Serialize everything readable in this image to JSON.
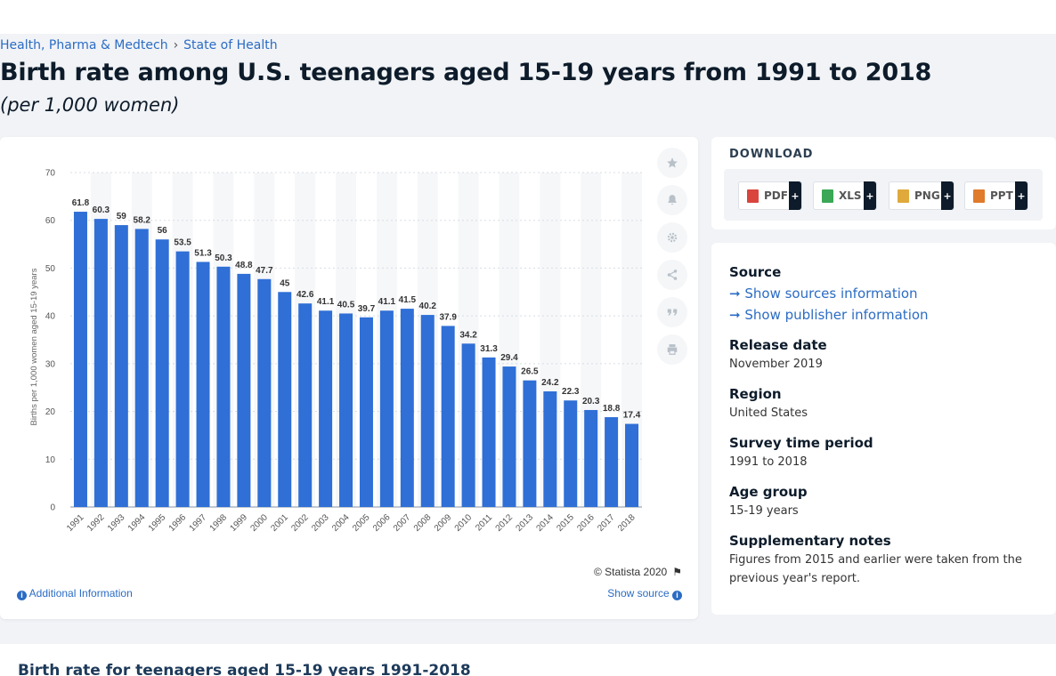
{
  "breadcrumb": {
    "category": "Health, Pharma & Medtech",
    "separator": "›",
    "topic": "State of Health"
  },
  "page": {
    "title": "Birth rate among U.S. teenagers aged 15-19 years from 1991 to 2018",
    "subtitle": "(per 1,000 women)"
  },
  "chart_data": {
    "type": "bar",
    "title": "",
    "xlabel": "",
    "ylabel": "Births per 1,000 women aged 15-19 years",
    "categories": [
      "1991",
      "1992",
      "1993",
      "1994",
      "1995",
      "1996",
      "1997",
      "1998",
      "1999",
      "2000",
      "2001",
      "2002",
      "2003",
      "2004",
      "2005",
      "2006",
      "2007",
      "2008",
      "2009",
      "2010",
      "2011",
      "2012",
      "2013",
      "2014",
      "2015",
      "2016",
      "2017",
      "2018"
    ],
    "values": [
      61.8,
      60.3,
      59,
      58.2,
      56,
      53.5,
      51.3,
      50.3,
      48.8,
      47.7,
      45,
      42.6,
      41.1,
      40.5,
      39.7,
      41.1,
      41.5,
      40.2,
      37.9,
      34.2,
      31.3,
      29.4,
      26.5,
      24.2,
      22.3,
      20.3,
      18.8,
      17.4
    ],
    "value_labels": [
      "61.8",
      "60.3",
      "59",
      "58.2",
      "56",
      "53.5",
      "51.3",
      "50.3",
      "48.8",
      "47.7",
      "45",
      "42.6",
      "41.1",
      "40.5",
      "39.7",
      "41.1",
      "41.5",
      "40.2",
      "37.9",
      "34.2",
      "31.3",
      "29.4",
      "26.5",
      "24.2",
      "22.3",
      "20.3",
      "18.8",
      "17.4"
    ],
    "ylim": [
      0,
      70
    ],
    "yticks": [
      "0",
      "10",
      "20",
      "30",
      "40",
      "50",
      "60",
      "70"
    ],
    "grid": "alternating column bands",
    "bar_color": "#2f6fd6"
  },
  "chart_footer": {
    "copyright": "© Statista 2020",
    "additional_info": "Additional Information",
    "show_source": "Show source"
  },
  "download": {
    "title": "DOWNLOAD",
    "formats": [
      {
        "label": "PDF",
        "plus": "+",
        "color": "#d9443c"
      },
      {
        "label": "XLS",
        "plus": "+",
        "color": "#3aa856"
      },
      {
        "label": "PNG",
        "plus": "+",
        "color": "#e0a93b"
      },
      {
        "label": "PPT",
        "plus": "+",
        "color": "#e07b2b"
      }
    ]
  },
  "meta": {
    "source_label": "Source",
    "show_sources": "Show sources information",
    "show_publisher": "Show publisher information",
    "release_label": "Release date",
    "release_value": "November 2019",
    "region_label": "Region",
    "region_value": "United States",
    "survey_label": "Survey time period",
    "survey_value": "1991 to 2018",
    "age_label": "Age group",
    "age_value": "15-19 years",
    "notes_label": "Supplementary notes",
    "notes_value": "Figures from 2015 and earlier were taken from the previous year's report."
  },
  "bottom": {
    "title": "Birth rate for teenagers aged 15-19 years 1991-2018"
  },
  "icons": {
    "star": "star-icon",
    "bell": "bell-icon",
    "gear": "gear-icon",
    "share": "share-icon",
    "quote": "quote-icon",
    "print": "print-icon"
  }
}
